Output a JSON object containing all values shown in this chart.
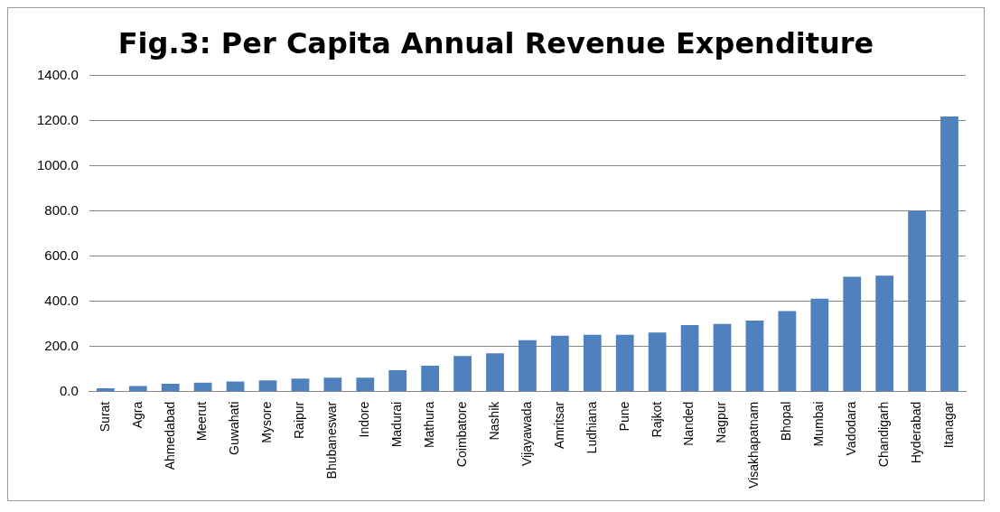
{
  "chart_data": {
    "type": "bar",
    "title": "Fig.3: Per Capita Annual Revenue Expenditure",
    "categories": [
      "Surat",
      "Agra",
      "Ahmedabad",
      "Meerut",
      "Guwahati",
      "Mysore",
      "Raipur",
      "Bhubaneswar",
      "Indore",
      "Madurai",
      "Mathura",
      "Coimbatore",
      "Nashik",
      "Vijayawada",
      "Amritsar",
      "Ludhiana",
      "Pune",
      "Rajkot",
      "Nanded",
      "Nagpur",
      "Visakhapatnam",
      "Bhopal",
      "Mumbai",
      "Vadodara",
      "Chandigarh",
      "Hyderabad",
      "Itanagar"
    ],
    "values": [
      15,
      25,
      35,
      40,
      45,
      50,
      58,
      62,
      62,
      95,
      115,
      158,
      170,
      228,
      248,
      252,
      252,
      262,
      295,
      300,
      315,
      357,
      412,
      508,
      513,
      800,
      1218
    ],
    "color": "#4f81bd",
    "ylim": [
      0,
      1400
    ],
    "yticks": [
      {
        "value": 0,
        "label": "0.0"
      },
      {
        "value": 200,
        "label": "200.0"
      },
      {
        "value": 400,
        "label": "400.0"
      },
      {
        "value": 600,
        "label": "600.0"
      },
      {
        "value": 800,
        "label": "800.0"
      },
      {
        "value": 1000,
        "label": "1000.0"
      },
      {
        "value": 1200,
        "label": "1200.0"
      },
      {
        "value": 1400,
        "label": "1400.0"
      }
    ],
    "grid": "y"
  }
}
